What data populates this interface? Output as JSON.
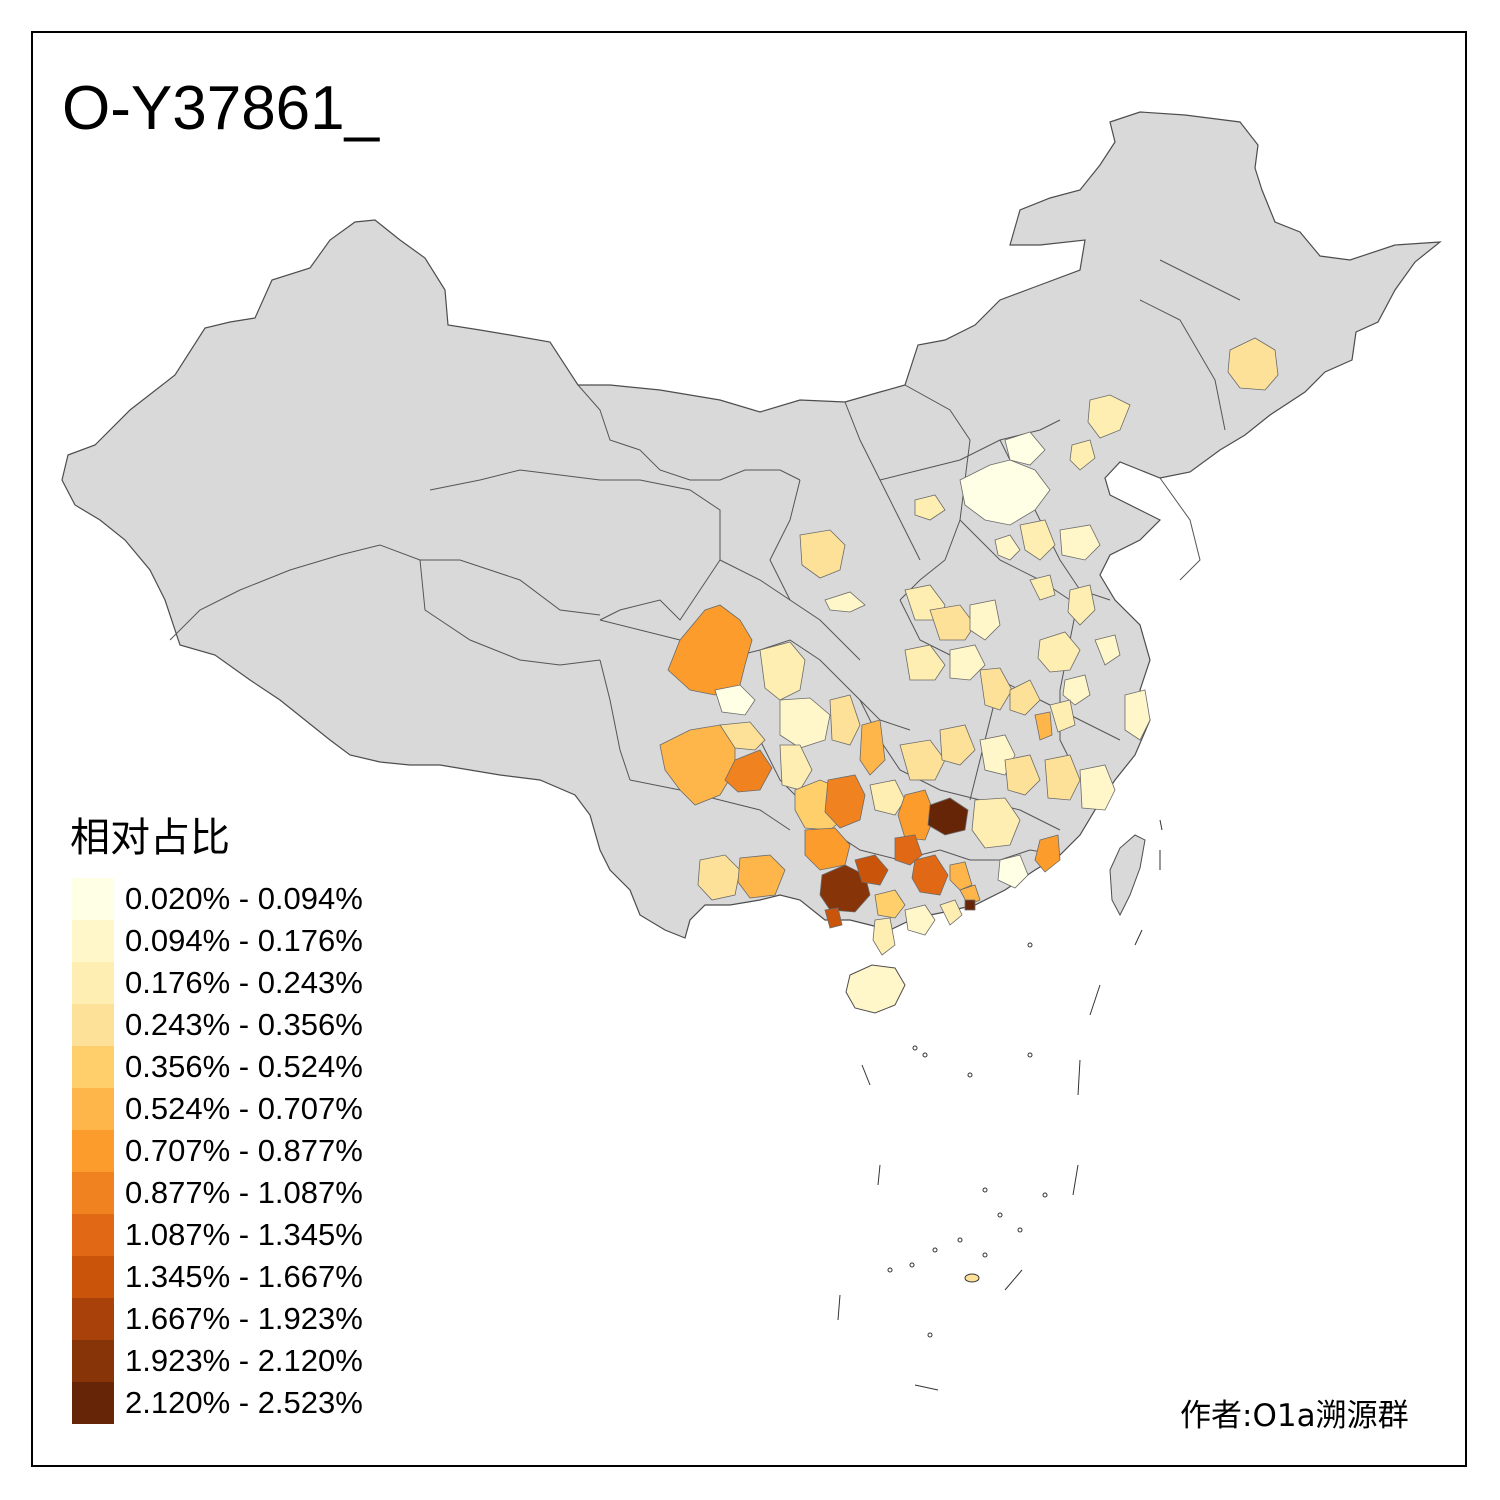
{
  "title": "O-Y37861_",
  "legend": {
    "title": "相对占比",
    "classes": [
      {
        "label": "0.020% - 0.094%",
        "color": "#FFFFE5"
      },
      {
        "label": "0.094% - 0.176%",
        "color": "#FFF7C9"
      },
      {
        "label": "0.176% - 0.243%",
        "color": "#FEEEB1"
      },
      {
        "label": "0.243% - 0.356%",
        "color": "#FEE199"
      },
      {
        "label": "0.356% - 0.524%",
        "color": "#FECF6A"
      },
      {
        "label": "0.524% - 0.707%",
        "color": "#FEB64A"
      },
      {
        "label": "0.707% - 0.877%",
        "color": "#FB9C2C"
      },
      {
        "label": "0.877% - 1.087%",
        "color": "#F0821F"
      },
      {
        "label": "1.087% - 1.345%",
        "color": "#E16915"
      },
      {
        "label": "1.345% - 1.667%",
        "color": "#CB540B"
      },
      {
        "label": "1.667% - 1.923%",
        "color": "#A9420A"
      },
      {
        "label": "1.923% - 2.120%",
        "color": "#873408"
      },
      {
        "label": "2.120% - 2.523%",
        "color": "#662506"
      }
    ]
  },
  "author": "作者:O1a溯源群",
  "colors": {
    "no_data": "#D9D9D9",
    "border": "#4D4D4D"
  }
}
